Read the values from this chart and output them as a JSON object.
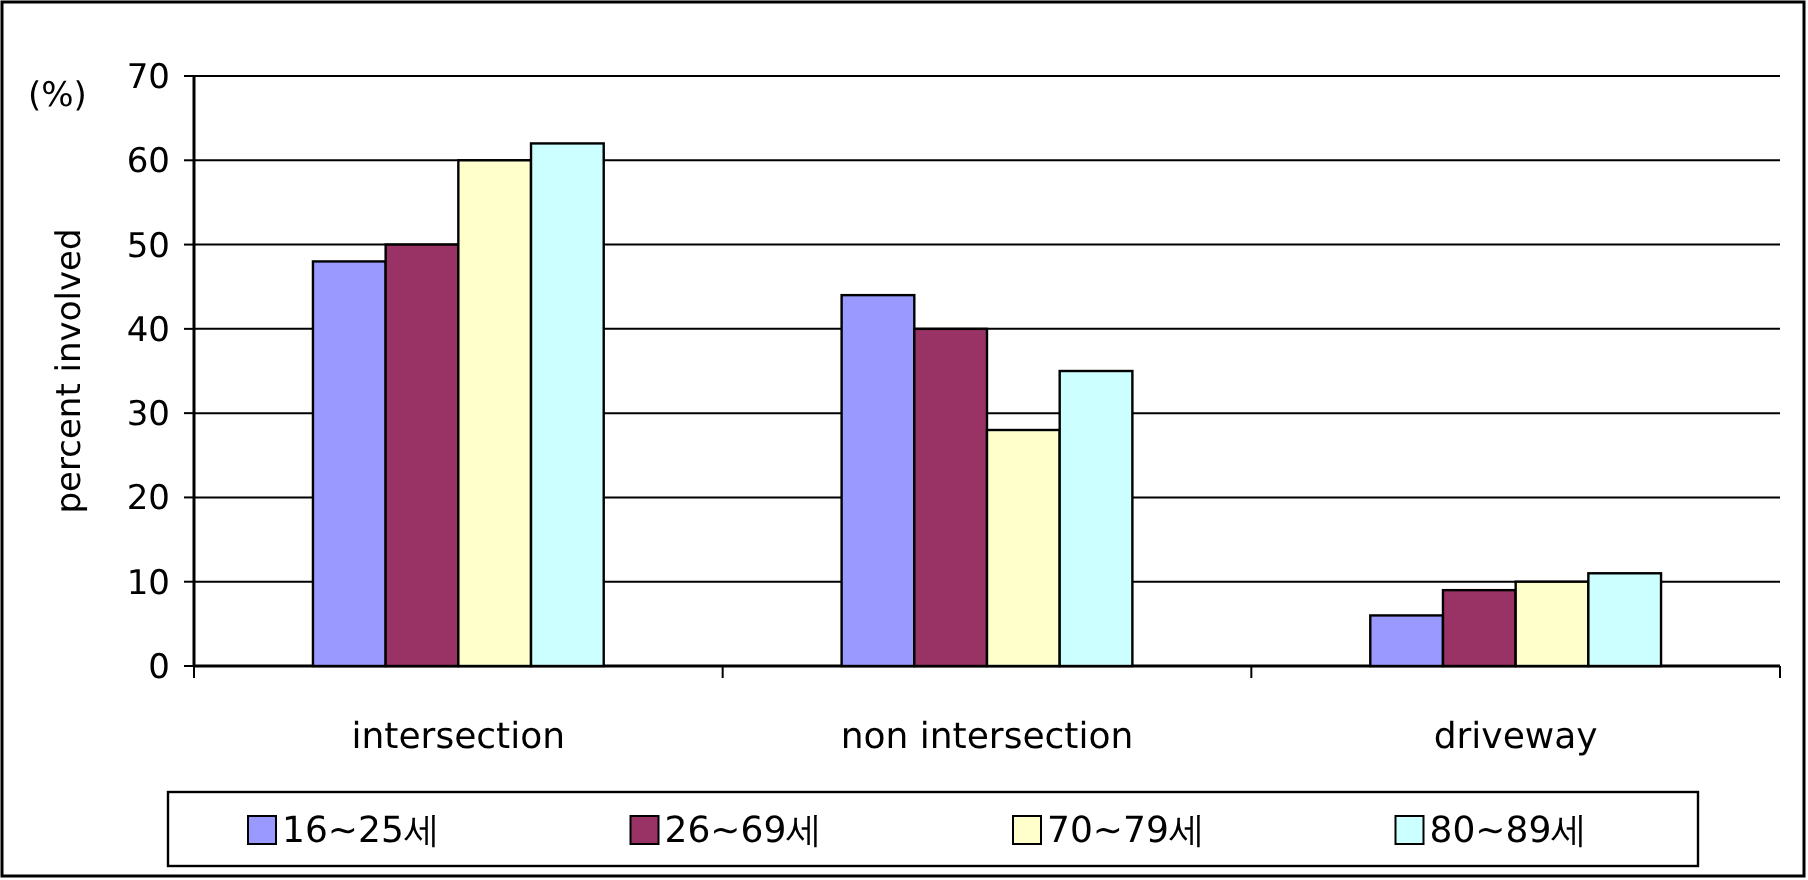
{
  "chart_data": {
    "type": "bar",
    "ylabel": "percent involved",
    "annotations": [
      "(%)"
    ],
    "categories": [
      "intersection",
      "non intersection",
      "driveway"
    ],
    "series": [
      {
        "name": "16~25세",
        "color": "#9999ff",
        "values": [
          48,
          44,
          6
        ]
      },
      {
        "name": "26~69세",
        "color": "#993366",
        "values": [
          50,
          40,
          9
        ]
      },
      {
        "name": "70~79세",
        "color": "#ffffcc",
        "values": [
          60,
          28,
          10
        ]
      },
      {
        "name": "80~89세",
        "color": "#ccffff",
        "values": [
          62,
          35,
          11
        ]
      }
    ],
    "ylim": [
      0,
      70
    ],
    "yticks": [
      0,
      10,
      20,
      30,
      40,
      50,
      60,
      70
    ],
    "grid": "y",
    "legend": "bottom"
  }
}
